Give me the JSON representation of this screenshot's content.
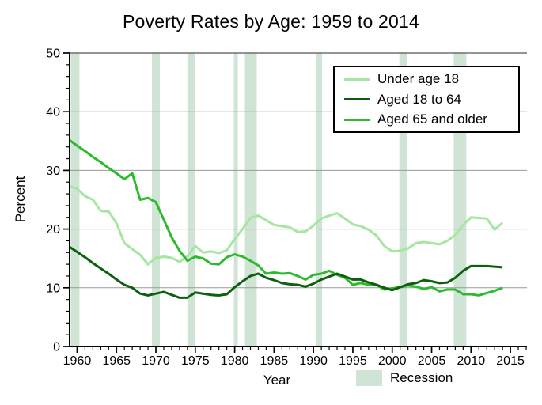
{
  "title": "Poverty Rates by Age: 1959 to 2014",
  "colors": {
    "background": "#ffffff",
    "axis": "#000000",
    "gridline": "#999999",
    "plot_top_border": "#555555",
    "legend_border": "#000000",
    "recession_band": "#d0e4d6"
  },
  "chart_data": {
    "type": "line",
    "title": "Poverty Rates by Age: 1959 to 2014",
    "xlabel": "Year",
    "ylabel": "Percent",
    "xlim": [
      1959.05,
      2017.1
    ],
    "ylim": [
      0,
      50
    ],
    "x_ticks": [
      1960,
      1965,
      1970,
      1975,
      1980,
      1985,
      1990,
      1995,
      2000,
      2005,
      2010,
      2015
    ],
    "y_ticks": [
      0,
      10,
      20,
      30,
      40,
      50
    ],
    "x_minor_tick_step_years": 1,
    "y_minor_tick_step": 2,
    "grid": "horizontal gray lines at 10,20,30,40; dark line at 50 (top frame)",
    "legend_position": "upper right",
    "x": [
      1959,
      1960,
      1961,
      1962,
      1963,
      1964,
      1965,
      1966,
      1967,
      1968,
      1969,
      1970,
      1971,
      1972,
      1973,
      1974,
      1975,
      1976,
      1977,
      1978,
      1979,
      1980,
      1981,
      1982,
      1983,
      1984,
      1985,
      1986,
      1987,
      1988,
      1989,
      1990,
      1991,
      1992,
      1993,
      1994,
      1995,
      1996,
      1997,
      1998,
      1999,
      2000,
      2001,
      2002,
      2003,
      2004,
      2005,
      2006,
      2007,
      2008,
      2009,
      2010,
      2011,
      2012,
      2013,
      2014
    ],
    "series": [
      {
        "name": "Under age 18",
        "color": "#a5e6a0",
        "values": [
          27.3,
          26.9,
          25.6,
          25.0,
          23.1,
          23.0,
          21.0,
          17.6,
          16.6,
          15.6,
          14.0,
          15.1,
          15.3,
          15.1,
          14.4,
          15.4,
          17.1,
          16.0,
          16.2,
          15.9,
          16.4,
          18.3,
          20.0,
          21.9,
          22.3,
          21.5,
          20.7,
          20.5,
          20.3,
          19.5,
          19.6,
          20.6,
          21.8,
          22.3,
          22.7,
          21.8,
          20.8,
          20.5,
          19.9,
          18.9,
          17.1,
          16.2,
          16.3,
          16.7,
          17.6,
          17.8,
          17.6,
          17.4,
          18.0,
          19.0,
          20.7,
          22.0,
          21.9,
          21.8,
          19.9,
          21.1
        ]
      },
      {
        "name": "Aged 18 to 64",
        "color": "#0d600d",
        "values": [
          17.0,
          16.1,
          15.2,
          14.2,
          13.3,
          12.4,
          11.4,
          10.5,
          10.0,
          9.0,
          8.7,
          9.0,
          9.3,
          8.8,
          8.3,
          8.3,
          9.2,
          9.0,
          8.8,
          8.7,
          8.9,
          10.1,
          11.1,
          12.0,
          12.4,
          11.7,
          11.3,
          10.8,
          10.6,
          10.5,
          10.2,
          10.7,
          11.4,
          11.9,
          12.4,
          11.9,
          11.4,
          11.4,
          10.9,
          10.5,
          10.0,
          9.6,
          10.1,
          10.6,
          10.8,
          11.3,
          11.1,
          10.8,
          10.9,
          11.7,
          12.9,
          13.7,
          13.7,
          13.7,
          13.6,
          13.5
        ]
      },
      {
        "name": "Aged 65 and older",
        "color": "#2eba2e",
        "values": [
          35.2,
          34.2,
          33.3,
          32.3,
          31.4,
          30.4,
          29.5,
          28.5,
          29.5,
          25.0,
          25.3,
          24.6,
          21.6,
          18.6,
          16.3,
          14.6,
          15.3,
          15.0,
          14.1,
          14.0,
          15.2,
          15.7,
          15.3,
          14.6,
          13.8,
          12.4,
          12.6,
          12.4,
          12.5,
          12.0,
          11.4,
          12.2,
          12.4,
          12.9,
          12.2,
          11.7,
          10.5,
          10.8,
          10.5,
          10.5,
          9.7,
          9.9,
          10.1,
          10.4,
          10.2,
          9.8,
          10.1,
          9.4,
          9.7,
          9.7,
          8.9,
          8.9,
          8.7,
          9.1,
          9.5,
          10.0
        ]
      }
    ],
    "recession_bands": [
      [
        1959.2,
        1960.3
      ],
      [
        1969.5,
        1970.5
      ],
      [
        1974.0,
        1975.0
      ],
      [
        1979.9,
        1980.4
      ],
      [
        1981.3,
        1982.8
      ],
      [
        1990.3,
        1991.1
      ],
      [
        2000.9,
        2001.9
      ],
      [
        2007.8,
        2009.4
      ]
    ],
    "recession_color": "#d0e4d6",
    "recession_label": "Recession"
  }
}
